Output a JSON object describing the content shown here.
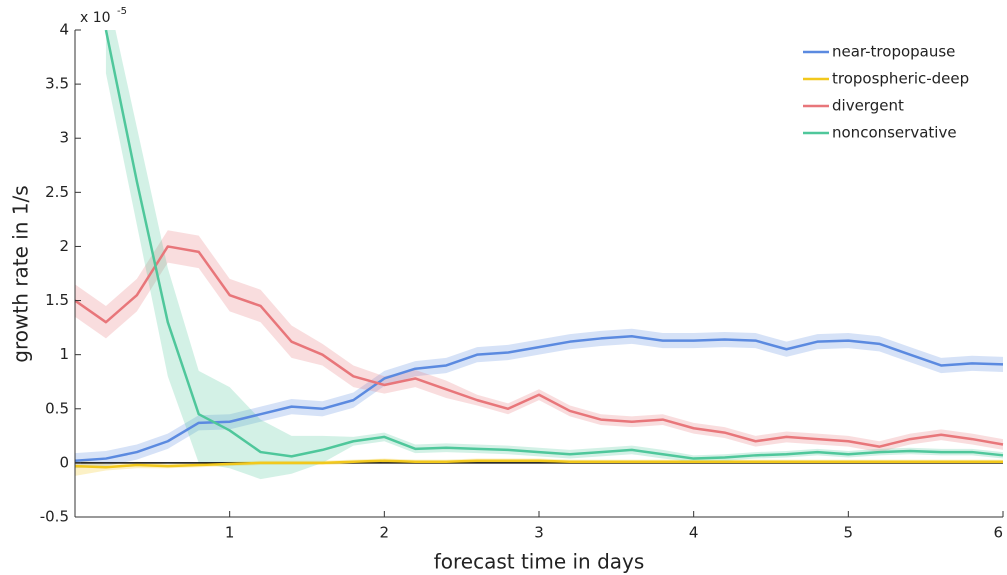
{
  "chart_data": {
    "type": "line",
    "x_label": "forecast time in days",
    "y_label": "growth rate in 1/s",
    "y_scale_base": "x 10",
    "y_scale_exponent": "-5",
    "x": [
      0,
      0.2,
      0.4,
      0.6,
      0.8,
      1.0,
      1.2,
      1.4,
      1.6,
      1.8,
      2.0,
      2.2,
      2.4,
      2.6,
      2.8,
      3.0,
      3.2,
      3.4,
      3.6,
      3.8,
      4.0,
      4.2,
      4.4,
      4.6,
      4.8,
      5.0,
      5.2,
      5.4,
      5.6,
      5.8,
      6.0
    ],
    "xlim": [
      0,
      6
    ],
    "xticks": [
      1,
      2,
      3,
      4,
      5,
      6
    ],
    "ylim": [
      -0.5,
      4
    ],
    "yticks": [
      -0.5,
      0,
      0.5,
      1,
      1.5,
      2,
      2.5,
      3,
      3.5,
      4
    ],
    "legend_position": "upper right",
    "series": [
      {
        "name": "near-tropopause",
        "color": "#5b8ae0",
        "values": [
          0.02,
          0.04,
          0.1,
          0.2,
          0.37,
          0.38,
          0.45,
          0.52,
          0.5,
          0.58,
          0.78,
          0.87,
          0.9,
          1.0,
          1.02,
          1.07,
          1.12,
          1.15,
          1.17,
          1.13,
          1.13,
          1.14,
          1.13,
          1.05,
          1.12,
          1.13,
          1.1,
          1.0,
          0.9,
          0.92,
          0.91
        ],
        "lower": [
          -0.05,
          -0.03,
          0.03,
          0.13,
          0.3,
          0.31,
          0.38,
          0.45,
          0.43,
          0.51,
          0.71,
          0.8,
          0.83,
          0.93,
          0.95,
          1.0,
          1.05,
          1.08,
          1.1,
          1.06,
          1.06,
          1.07,
          1.06,
          0.98,
          1.05,
          1.06,
          1.03,
          0.93,
          0.83,
          0.85,
          0.84
        ],
        "upper": [
          0.09,
          0.11,
          0.17,
          0.27,
          0.44,
          0.45,
          0.52,
          0.59,
          0.57,
          0.65,
          0.85,
          0.94,
          0.97,
          1.07,
          1.09,
          1.14,
          1.19,
          1.22,
          1.24,
          1.2,
          1.2,
          1.21,
          1.2,
          1.12,
          1.19,
          1.2,
          1.17,
          1.07,
          0.97,
          0.99,
          0.98
        ]
      },
      {
        "name": "tropospheric-deep",
        "color": "#f2c81c",
        "values": [
          -0.03,
          -0.04,
          -0.02,
          -0.03,
          -0.02,
          -0.01,
          0,
          0,
          0,
          0.01,
          0.02,
          0.01,
          0.01,
          0.02,
          0.02,
          0.02,
          0.01,
          0.01,
          0.01,
          0.01,
          0.01,
          0.01,
          0.01,
          0.01,
          0.01,
          0.01,
          0.01,
          0.01,
          0.01,
          0.01,
          0.01
        ],
        "lower": [
          -0.12,
          -0.07,
          -0.05,
          -0.05,
          -0.04,
          -0.03,
          -0.02,
          -0.02,
          -0.02,
          -0.01,
          0,
          -0.01,
          -0.01,
          0,
          0,
          0,
          -0.01,
          -0.01,
          -0.01,
          -0.01,
          -0.01,
          -0.01,
          -0.01,
          -0.01,
          -0.01,
          -0.01,
          -0.01,
          -0.01,
          -0.01,
          -0.01,
          -0.01
        ],
        "upper": [
          0.03,
          -0.01,
          0.01,
          -0.01,
          0,
          0.01,
          0.02,
          0.02,
          0.02,
          0.03,
          0.04,
          0.03,
          0.03,
          0.04,
          0.04,
          0.04,
          0.03,
          0.03,
          0.03,
          0.03,
          0.03,
          0.03,
          0.03,
          0.03,
          0.03,
          0.03,
          0.03,
          0.03,
          0.03,
          0.03,
          0.03
        ]
      },
      {
        "name": "divergent",
        "color": "#e8767a",
        "values": [
          1.5,
          1.3,
          1.55,
          2.0,
          1.95,
          1.55,
          1.45,
          1.12,
          1.0,
          0.8,
          0.72,
          0.78,
          0.68,
          0.58,
          0.5,
          0.63,
          0.48,
          0.4,
          0.38,
          0.4,
          0.32,
          0.28,
          0.2,
          0.24,
          0.22,
          0.2,
          0.15,
          0.22,
          0.26,
          0.22,
          0.17
        ],
        "lower": [
          1.35,
          1.15,
          1.4,
          1.85,
          1.8,
          1.4,
          1.3,
          0.97,
          0.9,
          0.7,
          0.64,
          0.7,
          0.6,
          0.53,
          0.45,
          0.58,
          0.43,
          0.35,
          0.33,
          0.35,
          0.27,
          0.23,
          0.15,
          0.19,
          0.17,
          0.15,
          0.1,
          0.17,
          0.21,
          0.17,
          0.12
        ],
        "upper": [
          1.65,
          1.45,
          1.7,
          2.15,
          2.1,
          1.7,
          1.6,
          1.27,
          1.1,
          0.9,
          0.8,
          0.86,
          0.76,
          0.63,
          0.55,
          0.68,
          0.53,
          0.45,
          0.43,
          0.45,
          0.37,
          0.33,
          0.25,
          0.29,
          0.27,
          0.25,
          0.2,
          0.27,
          0.31,
          0.27,
          0.22
        ]
      },
      {
        "name": "nonconservative",
        "color": "#4fc79b",
        "values": [
          null,
          4.0,
          2.6,
          1.3,
          0.45,
          0.3,
          0.1,
          0.06,
          0.12,
          0.2,
          0.24,
          0.13,
          0.14,
          0.13,
          0.12,
          0.1,
          0.08,
          0.1,
          0.12,
          0.08,
          0.04,
          0.05,
          0.07,
          0.08,
          0.1,
          0.08,
          0.1,
          0.11,
          0.1,
          0.1,
          0.07
        ],
        "lower": [
          null,
          3.6,
          2.2,
          0.8,
          0,
          -0.05,
          -0.15,
          -0.1,
          0.0,
          0.16,
          0.2,
          0.09,
          0.1,
          0.09,
          0.08,
          0.06,
          0.04,
          0.06,
          0.08,
          0.04,
          0.01,
          0.02,
          0.04,
          0.05,
          0.07,
          0.05,
          0.07,
          0.08,
          0.07,
          0.07,
          0.04
        ],
        "upper": [
          null,
          4.4,
          3.1,
          1.8,
          0.85,
          0.7,
          0.4,
          0.25,
          0.25,
          0.24,
          0.28,
          0.17,
          0.18,
          0.17,
          0.16,
          0.14,
          0.12,
          0.14,
          0.16,
          0.12,
          0.07,
          0.08,
          0.1,
          0.11,
          0.13,
          0.11,
          0.13,
          0.14,
          0.13,
          0.13,
          0.1
        ]
      }
    ]
  }
}
